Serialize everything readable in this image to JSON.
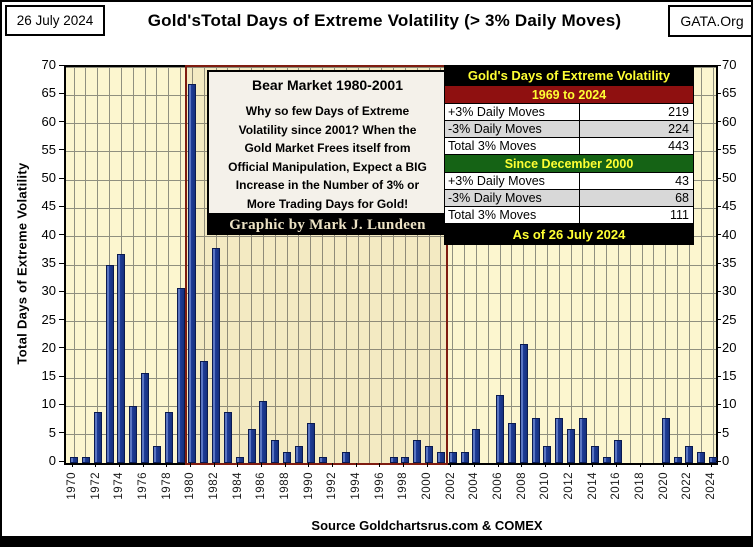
{
  "header": {
    "date": "26 July 2024",
    "title": "Gold'sTotal Days of Extreme Volatility (> 3% Daily Moves)",
    "org": "GATA.Org"
  },
  "annotation": {
    "title": "Bear Market 1980-2001",
    "lines": [
      "Why so few Days of Extreme",
      "Volatility since 2001?   When the",
      "Gold Market Frees itself from",
      "Official Manipulation,  Expect a BIG",
      "Increase in the Number of 3% or",
      "More Trading Days for Gold!"
    ],
    "credit": "Graphic by Mark J. Lundeen"
  },
  "stats_table": {
    "title": "Gold's Days of Extreme Volatility",
    "sections": [
      {
        "heading": "1969 to 2024",
        "heading_bg": "#8f1010",
        "rows": [
          {
            "label": "+3% Daily Moves",
            "value": "219",
            "bg": "#ffffff"
          },
          {
            "label": "-3% Daily Moves",
            "value": "224",
            "bg": "#d8d8d8"
          },
          {
            "label": "Total 3% Moves",
            "value": "443",
            "bg": "#ffffff"
          }
        ]
      },
      {
        "heading": "Since December 2000",
        "heading_bg": "#156315",
        "rows": [
          {
            "label": "+3% Daily Moves",
            "value": "43",
            "bg": "#ffffff"
          },
          {
            "label": "-3% Daily Moves",
            "value": "68",
            "bg": "#d8d8d8"
          },
          {
            "label": "Total 3% Moves",
            "value": "111",
            "bg": "#ffffff"
          }
        ]
      }
    ],
    "footer": "As of 26 July 2024"
  },
  "chart_data": {
    "type": "bar",
    "title": "Gold'sTotal Days of Extreme Volatility (> 3% Daily Moves)",
    "ylabel": "Total Days of Extreme Volatility",
    "xlabel": "",
    "ylim": [
      0,
      70
    ],
    "ytick_step": 5,
    "xtick_label_step": 2,
    "grid": true,
    "legend": "none",
    "categories": [
      1970,
      1971,
      1972,
      1973,
      1974,
      1975,
      1976,
      1977,
      1978,
      1979,
      1980,
      1981,
      1982,
      1983,
      1984,
      1985,
      1986,
      1987,
      1988,
      1989,
      1990,
      1991,
      1992,
      1993,
      1994,
      1995,
      1996,
      1997,
      1998,
      1999,
      2000,
      2001,
      2002,
      2003,
      2004,
      2005,
      2006,
      2007,
      2008,
      2009,
      2010,
      2011,
      2012,
      2013,
      2014,
      2015,
      2016,
      2017,
      2018,
      2019,
      2020,
      2021,
      2022,
      2023,
      2024
    ],
    "values": [
      1,
      1,
      9,
      35,
      37,
      10,
      16,
      3,
      9,
      31,
      67,
      18,
      38,
      9,
      1,
      6,
      11,
      4,
      2,
      3,
      7,
      1,
      0,
      2,
      0,
      0,
      0,
      1,
      1,
      4,
      3,
      2,
      2,
      2,
      6,
      0,
      12,
      7,
      21,
      8,
      3,
      8,
      6,
      8,
      3,
      1,
      4,
      0,
      0,
      0,
      8,
      1,
      3,
      2,
      1
    ],
    "highlight_region": {
      "label": "Bear Market 1980-2001",
      "from": 1980,
      "to": 2001,
      "border_color": "#7f1c10"
    }
  },
  "footer": {
    "source": "Source Goldchartsrus.com  & COMEX"
  },
  "colors": {
    "plot_bg": "#fcf6cf",
    "gridline": "#90907f",
    "bar_fill": "#1e3d99",
    "bar_edge": "#0a1a50",
    "table_title_bg": "#000000",
    "table_accent_text": "#ffff33",
    "section1_bg": "#8f1010",
    "section2_bg": "#156315",
    "alt_row_bg": "#d8d8d8",
    "highlight_border": "#7f1c10"
  }
}
